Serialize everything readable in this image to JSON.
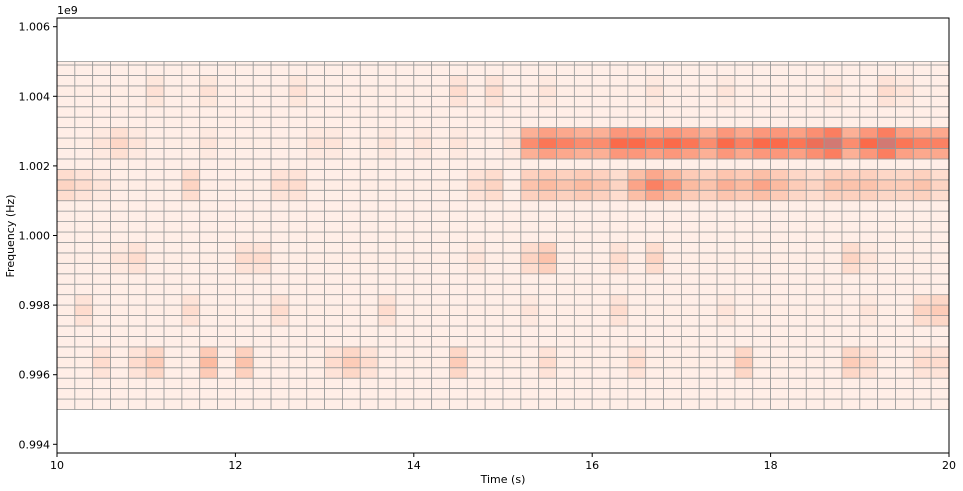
{
  "chart_data": {
    "type": "heatmap",
    "title": "",
    "xlabel": "Time (s)",
    "ylabel": "Frequency (Hz)",
    "y_offset_label": "1e9",
    "xlim": [
      10,
      20
    ],
    "ylim": [
      0.99375,
      1.00625
    ],
    "x_ticks": [
      10,
      12,
      14,
      16,
      18,
      20
    ],
    "x_tick_labels": [
      "10",
      "12",
      "14",
      "16",
      "18",
      "20"
    ],
    "y_ticks": [
      0.994,
      0.996,
      0.998,
      1.0,
      1.002,
      1.004,
      1.006
    ],
    "y_tick_labels": [
      "0.994",
      "0.996",
      "0.998",
      "1.000",
      "1.002",
      "1.004",
      "1.006"
    ],
    "x_edges": [
      10.0,
      10.2,
      10.4,
      10.6,
      10.8,
      11.0,
      11.2,
      11.4,
      11.6,
      11.8,
      12.0,
      12.2,
      12.4,
      12.6,
      12.8,
      13.0,
      13.2,
      13.4,
      13.6,
      13.8,
      14.0,
      14.2,
      14.4,
      14.6,
      14.8,
      15.0,
      15.2,
      15.4,
      15.6,
      15.8,
      16.0,
      16.2,
      16.4,
      16.6,
      16.8,
      17.0,
      17.2,
      17.4,
      17.6,
      17.8,
      18.0,
      18.2,
      18.4,
      18.6,
      18.8,
      19.0,
      19.2,
      19.4,
      19.6,
      19.8,
      20.0
    ],
    "y_edges": [
      0.995,
      0.9953,
      0.9956,
      0.9959,
      0.9962,
      0.9965,
      0.9968,
      0.9971,
      0.9974,
      0.9977,
      0.998,
      0.9983,
      0.9986,
      0.9989,
      0.9992,
      0.9995,
      0.9998,
      1.0001,
      1.0004,
      1.0007,
      1.001,
      1.0013,
      1.0016,
      1.0019,
      1.0022,
      1.0025,
      1.0028,
      1.0031,
      1.0034,
      1.0037,
      1.004,
      1.0043,
      1.0046,
      1.0049,
      1.005
    ],
    "band_rows": {
      "tone_a": [
        24,
        25,
        26
      ],
      "tone_b": [
        20,
        21,
        22
      ],
      "sideband_upper": [
        29,
        30,
        31
      ],
      "sideband_mid": [
        13,
        14,
        15
      ],
      "sideband_low": [
        8,
        9,
        10
      ],
      "sideband_bottom": [
        3,
        4,
        5
      ]
    },
    "band_levels": {
      "tone_a": [
        0.05,
        0.05,
        0.1,
        0.18,
        0.1,
        0.05,
        0.05,
        0.05,
        0.1,
        0.05,
        0.05,
        0.05,
        0.05,
        0.05,
        0.1,
        0.1,
        0.05,
        0.05,
        0.1,
        0.05,
        0.1,
        0.05,
        0.1,
        0.05,
        0.05,
        0.1,
        0.55,
        0.65,
        0.6,
        0.55,
        0.55,
        0.7,
        0.7,
        0.65,
        0.7,
        0.65,
        0.55,
        0.7,
        0.6,
        0.7,
        0.7,
        0.65,
        0.75,
        0.85,
        0.55,
        0.7,
        0.85,
        0.65,
        0.6,
        0.6
      ],
      "tone_b": [
        0.2,
        0.15,
        0.1,
        0.05,
        0.05,
        0.05,
        0.05,
        0.2,
        0.05,
        0.05,
        0.05,
        0.05,
        0.15,
        0.15,
        0.05,
        0.05,
        0.05,
        0.05,
        0.05,
        0.05,
        0.05,
        0.05,
        0.05,
        0.15,
        0.2,
        0.05,
        0.3,
        0.35,
        0.3,
        0.35,
        0.3,
        0.2,
        0.45,
        0.6,
        0.5,
        0.35,
        0.3,
        0.4,
        0.35,
        0.45,
        0.35,
        0.25,
        0.2,
        0.3,
        0.3,
        0.3,
        0.25,
        0.25,
        0.3,
        0.2
      ],
      "sideband_upper": [
        0.05,
        0.05,
        0.05,
        0.05,
        0.05,
        0.12,
        0.05,
        0.05,
        0.12,
        0.05,
        0.05,
        0.05,
        0.05,
        0.12,
        0.05,
        0.05,
        0.05,
        0.05,
        0.05,
        0.05,
        0.05,
        0.05,
        0.15,
        0.05,
        0.15,
        0.05,
        0.05,
        0.1,
        0.05,
        0.05,
        0.05,
        0.05,
        0.05,
        0.1,
        0.05,
        0.05,
        0.05,
        0.1,
        0.05,
        0.05,
        0.05,
        0.05,
        0.05,
        0.1,
        0.05,
        0.05,
        0.15,
        0.1,
        0.05,
        0.05
      ],
      "sideband_mid": [
        0.05,
        0.05,
        0.05,
        0.1,
        0.15,
        0.05,
        0.05,
        0.05,
        0.05,
        0.05,
        0.15,
        0.15,
        0.05,
        0.05,
        0.05,
        0.05,
        0.05,
        0.05,
        0.05,
        0.05,
        0.05,
        0.05,
        0.05,
        0.1,
        0.05,
        0.05,
        0.2,
        0.3,
        0.05,
        0.05,
        0.05,
        0.15,
        0.05,
        0.2,
        0.05,
        0.05,
        0.05,
        0.05,
        0.05,
        0.05,
        0.05,
        0.05,
        0.05,
        0.05,
        0.2,
        0.1,
        0.05,
        0.05,
        0.05,
        0.05
      ],
      "sideband_low": [
        0.05,
        0.15,
        0.05,
        0.05,
        0.05,
        0.05,
        0.05,
        0.15,
        0.05,
        0.05,
        0.05,
        0.05,
        0.15,
        0.05,
        0.05,
        0.05,
        0.05,
        0.05,
        0.15,
        0.05,
        0.05,
        0.05,
        0.05,
        0.05,
        0.05,
        0.05,
        0.1,
        0.05,
        0.05,
        0.05,
        0.05,
        0.15,
        0.05,
        0.05,
        0.05,
        0.05,
        0.05,
        0.1,
        0.05,
        0.05,
        0.05,
        0.05,
        0.05,
        0.05,
        0.05,
        0.1,
        0.05,
        0.05,
        0.2,
        0.25
      ],
      "sideband_bottom": [
        0.05,
        0.05,
        0.15,
        0.05,
        0.15,
        0.25,
        0.05,
        0.05,
        0.35,
        0.05,
        0.3,
        0.05,
        0.05,
        0.05,
        0.05,
        0.15,
        0.25,
        0.15,
        0.05,
        0.05,
        0.05,
        0.05,
        0.25,
        0.05,
        0.05,
        0.05,
        0.05,
        0.15,
        0.05,
        0.05,
        0.05,
        0.05,
        0.15,
        0.05,
        0.05,
        0.05,
        0.05,
        0.05,
        0.25,
        0.05,
        0.05,
        0.05,
        0.05,
        0.05,
        0.25,
        0.15,
        0.05,
        0.05,
        0.15,
        0.15
      ]
    },
    "background_level": 0.04,
    "grid": true,
    "colormap": "Reds",
    "colors": {
      "low": "#fff5f0",
      "mid": "#fcbba1",
      "high": "#fb6a4a",
      "peak": "#a9879b",
      "cell_border": "#999999",
      "axis": "#000000"
    }
  }
}
